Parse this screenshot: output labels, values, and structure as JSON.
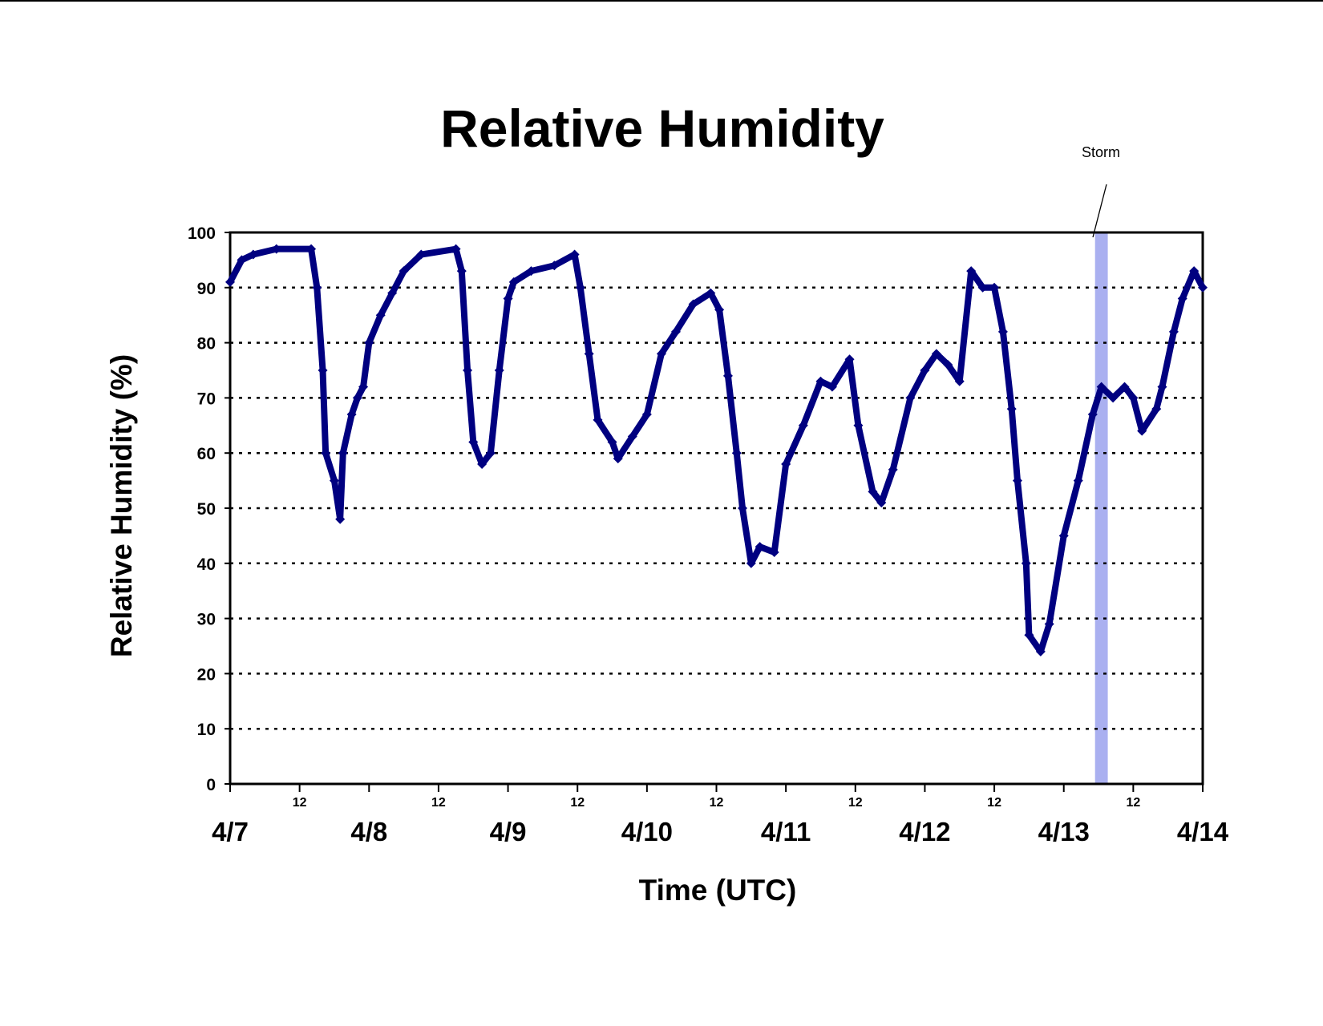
{
  "chart_data": {
    "type": "scatter",
    "title": "Relative Humidity",
    "xlabel": "Time (UTC)",
    "ylabel": "Relative Humidity (%)",
    "x": [
      0,
      2,
      4,
      8,
      14,
      15,
      16,
      16.5,
      18,
      19,
      19.5,
      21,
      22,
      23,
      24,
      26,
      28,
      30,
      33,
      39,
      40,
      41,
      42,
      43.5,
      45,
      46.5,
      48,
      49,
      52,
      56,
      59.5,
      60.5,
      62,
      63.5,
      66,
      67,
      69.5,
      72,
      74.5,
      77,
      80,
      83,
      84.5,
      86,
      87.5,
      88.5,
      90,
      91.5,
      94,
      96,
      99,
      102,
      104,
      107,
      108.5,
      111,
      112.5,
      114.5,
      117.5,
      120,
      122,
      124,
      126,
      128,
      130,
      132,
      133.5,
      135,
      136,
      137.5,
      138,
      140,
      141.5,
      144,
      146.5,
      149,
      150.5,
      152.5,
      154.5,
      156,
      157.5,
      160,
      161,
      163,
      164.5,
      166.5,
      168
    ],
    "series": [
      {
        "name": "Relative Humidity",
        "color": "#000080",
        "values": [
          91,
          95,
          96,
          97,
          97,
          90,
          75,
          60,
          55,
          48,
          60,
          67,
          70,
          72,
          80,
          85,
          89,
          93,
          96,
          97,
          93,
          75,
          62,
          58,
          60,
          75,
          88,
          91,
          93,
          94,
          96,
          90,
          78,
          66,
          62,
          59,
          63,
          67,
          78,
          82,
          87,
          89,
          86,
          74,
          60,
          50,
          40,
          43,
          42,
          58,
          65,
          73,
          72,
          77,
          65,
          53,
          51,
          57,
          70,
          75,
          78,
          76,
          73,
          93,
          90,
          90,
          82,
          68,
          55,
          40,
          27,
          24,
          29,
          45,
          55,
          67,
          72,
          70,
          72,
          70,
          64,
          68,
          72,
          82,
          88,
          93,
          90
        ]
      }
    ],
    "xlim": [
      0,
      168
    ],
    "ylim": [
      0,
      100
    ],
    "yticks": [
      0,
      10,
      20,
      30,
      40,
      50,
      60,
      70,
      80,
      90,
      100
    ],
    "xticks": [
      {
        "value": 0,
        "label": "4/7"
      },
      {
        "value": 12,
        "label": "12"
      },
      {
        "value": 24,
        "label": "4/8"
      },
      {
        "value": 36,
        "label": "12"
      },
      {
        "value": 48,
        "label": "4/9"
      },
      {
        "value": 60,
        "label": "12"
      },
      {
        "value": 72,
        "label": "4/10"
      },
      {
        "value": 84,
        "label": "12"
      },
      {
        "value": 96,
        "label": "4/11"
      },
      {
        "value": 108,
        "label": "12"
      },
      {
        "value": 120,
        "label": "4/12"
      },
      {
        "value": 132,
        "label": "12"
      },
      {
        "value": 144,
        "label": "4/13"
      },
      {
        "value": 156,
        "label": "12"
      },
      {
        "value": 168,
        "label": "4/14"
      }
    ],
    "grid": true,
    "annotation": {
      "text": "Storm",
      "x": [
        149.4,
        151.6
      ],
      "color": "#aab0f0"
    }
  }
}
